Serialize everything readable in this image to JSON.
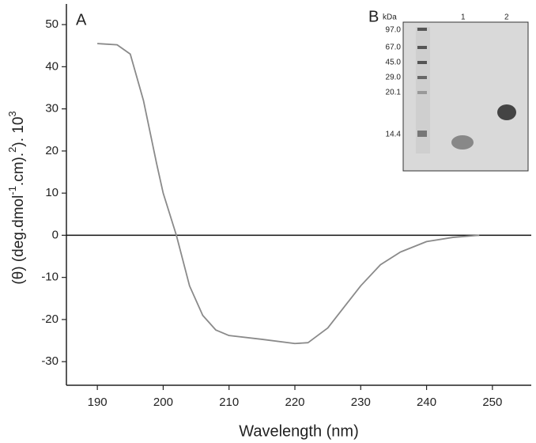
{
  "chart_data": {
    "type": "line",
    "ylabel": [
      "(θ) (deg.dmol",
      "-1",
      ".cm).",
      "2",
      "). 10",
      "3"
    ],
    "xlabel": "Wavelength  (nm)",
    "annotations": [
      "A",
      "B"
    ],
    "x": [
      190,
      193,
      195,
      197,
      199,
      200,
      202,
      204,
      206,
      208,
      210,
      215,
      220,
      222,
      225,
      228,
      230,
      233,
      236,
      240,
      244,
      248
    ],
    "series": [
      {
        "color": "#8a8a8a",
        "values": [
          45.5,
          45.2,
          43,
          32,
          17,
          10,
          0,
          -12,
          -19,
          -22.5,
          -23.8,
          -24.7,
          -25.7,
          -25.5,
          -22,
          -16,
          -12,
          -7,
          -4,
          -1.5,
          -0.5,
          0
        ]
      }
    ],
    "hline": 0,
    "xlim": [
      185.3,
      255.9
    ],
    "ylim": [
      -35.6,
      54.9
    ],
    "xticks": [
      190,
      200,
      210,
      220,
      230,
      240,
      250
    ],
    "yticks": [
      -30,
      -20,
      -10,
      0,
      10,
      20,
      30,
      40,
      50
    ],
    "inset": {
      "unit": "kDa",
      "markers": [
        "97.0",
        "67.0",
        "45.0",
        "29.0",
        "20.1",
        "14.4"
      ],
      "lanes": [
        "1",
        "2"
      ]
    }
  }
}
